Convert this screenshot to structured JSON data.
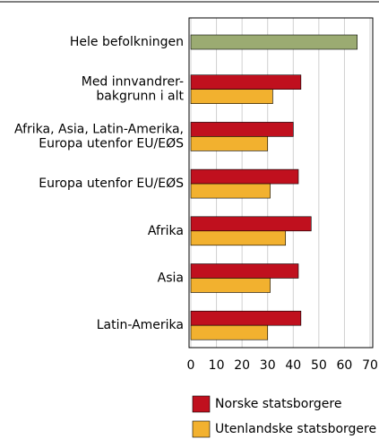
{
  "chart_data": {
    "type": "bar",
    "orientation": "horizontal",
    "categories": [
      [
        "Hele befolkningen"
      ],
      [
        "Med innvandrer-",
        "bakgrunn i alt"
      ],
      [
        "Afrika, Asia, Latin-Amerika,",
        "Europa utenfor EU/EØS"
      ],
      [
        "Europa utenfor EU/EØS"
      ],
      [
        "Afrika"
      ],
      [
        "Asia"
      ],
      [
        "Latin-Amerika"
      ]
    ],
    "total_values": [
      65,
      null,
      null,
      null,
      null,
      null,
      null
    ],
    "total_color": "#9bab72",
    "series": [
      {
        "name": "Norske statsborgere",
        "color": "#c0101e",
        "values": [
          null,
          43,
          40,
          42,
          47,
          42,
          43
        ]
      },
      {
        "name": "Utenlandske statsborgere",
        "color": "#f2b12f",
        "values": [
          null,
          32,
          30,
          31,
          37,
          31,
          30
        ]
      }
    ],
    "xlim": [
      0,
      70
    ],
    "xticks": [
      0,
      10,
      20,
      30,
      40,
      50,
      60,
      70
    ],
    "grid": true
  }
}
